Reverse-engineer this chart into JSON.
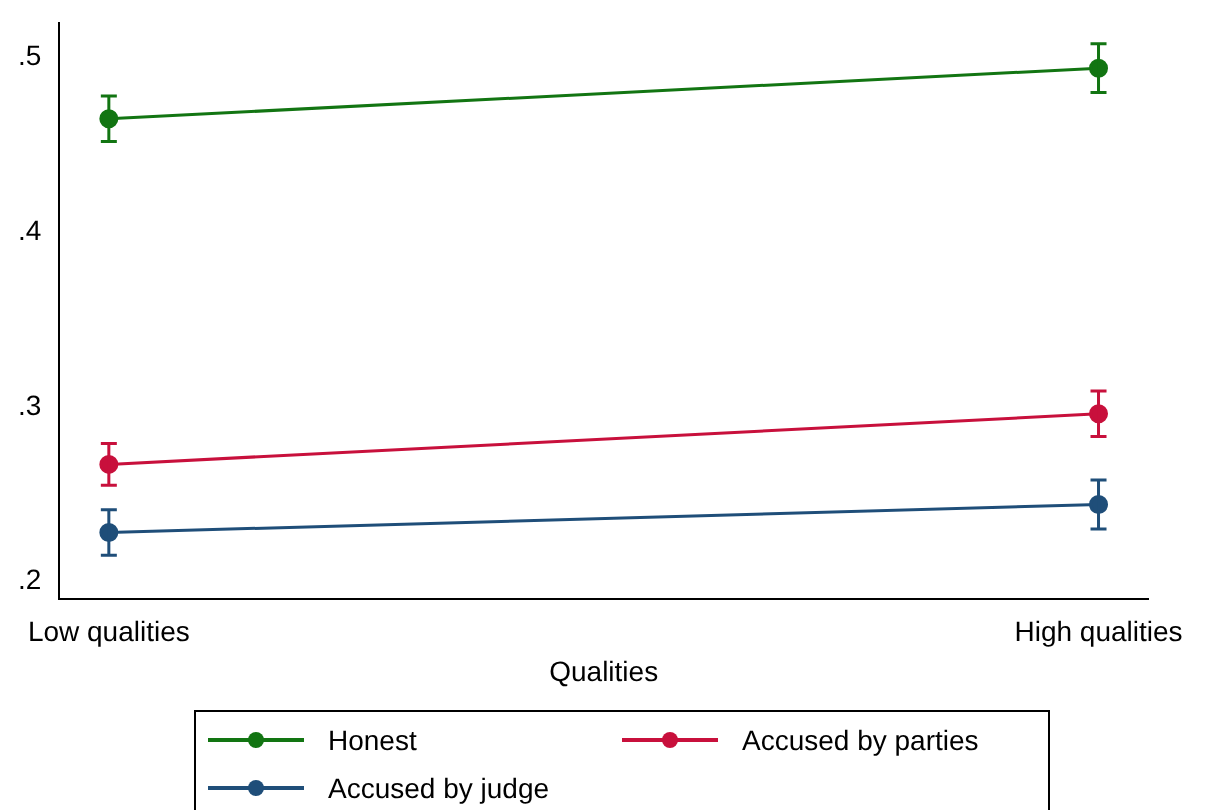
{
  "chart_data": {
    "type": "line",
    "xlabel": "Qualities",
    "categories": [
      "Low qualities",
      "High qualities"
    ],
    "series": [
      {
        "name": "Honest",
        "color": "#127512",
        "values": [
          0.465,
          0.494
        ],
        "errors": [
          0.013,
          0.014
        ]
      },
      {
        "name": "Accused by parties",
        "color": "#c8103c",
        "values": [
          0.267,
          0.296
        ],
        "errors": [
          0.012,
          0.013
        ]
      },
      {
        "name": "Accused by judge",
        "color": "#1f4e79",
        "values": [
          0.228,
          0.244
        ],
        "errors": [
          0.013,
          0.014
        ]
      }
    ],
    "ylim": [
      0.19,
      0.52
    ],
    "yticks": [
      {
        "value": 0.2,
        "label": ".2"
      },
      {
        "value": 0.3,
        "label": ".3"
      },
      {
        "value": 0.4,
        "label": ".4"
      },
      {
        "value": 0.5,
        "label": ".5"
      }
    ],
    "grid": false,
    "legend": "bottom",
    "marker": "circle",
    "line_style": "solid"
  }
}
